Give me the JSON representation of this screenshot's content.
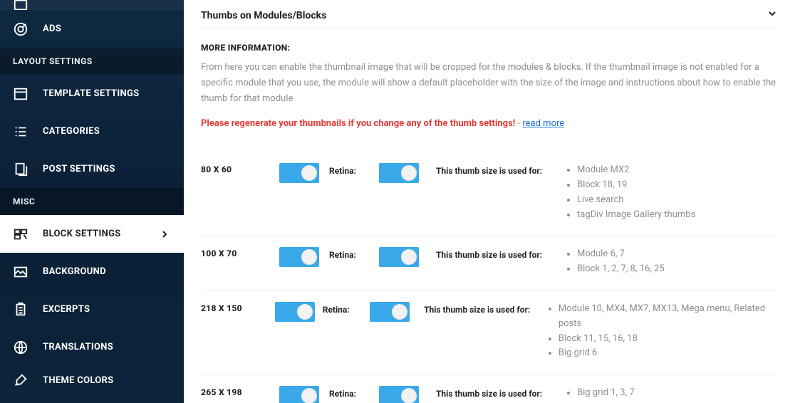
{
  "sidebar": {
    "items_top": [
      {
        "label": "ADS",
        "icon": "target"
      }
    ],
    "section1": "LAYOUT SETTINGS",
    "items_layout": [
      {
        "label": "TEMPLATE SETTINGS",
        "icon": "layout"
      },
      {
        "label": "CATEGORIES",
        "icon": "list"
      },
      {
        "label": "POST SETTINGS",
        "icon": "docs"
      }
    ],
    "section2": "MISC",
    "items_misc": [
      {
        "label": "BLOCK SETTINGS",
        "icon": "blocks",
        "active": true
      },
      {
        "label": "BACKGROUND",
        "icon": "image"
      },
      {
        "label": "EXCERPTS",
        "icon": "clipboard"
      },
      {
        "label": "TRANSLATIONS",
        "icon": "globe"
      },
      {
        "label": "THEME COLORS",
        "icon": "brush"
      }
    ]
  },
  "panel": {
    "title": "Thumbs on Modules/Blocks",
    "info_title": "MORE INFORMATION:",
    "info_text": "From here you can enable the thumbnail image that will be cropped for the modules & blocks. If the thumbnail image is not enabled for a specific module that you use, the module will show a default placeholder with the size of the image and instructions about how to enable the thumb for that module",
    "warning_text": "Please regenerate your thumbnails if you change any of the thumb settings!",
    "warning_sep": " - ",
    "warning_link": "read more",
    "retina_label": "Retina:",
    "used_label": "This thumb size is used for:",
    "rows": [
      {
        "size": "80 X 60",
        "uses": [
          "Module MX2",
          "Block 18, 19",
          "Live search",
          "tagDiv Image Gallery thumbs"
        ]
      },
      {
        "size": "100 X 70",
        "uses": [
          "Module 6, 7",
          "Block 1, 2, 7, 8, 16, 25"
        ]
      },
      {
        "size": "218 X 150",
        "uses": [
          "Module 10, MX4, MX7, MX13, Mega menu, Related posts",
          "Block 11, 15, 16, 18",
          "Big grid 6"
        ]
      },
      {
        "size": "265 X 198",
        "uses": [
          "Big grid 1, 3, 7"
        ]
      }
    ]
  },
  "colors": {
    "toggle": "#3aa9ea",
    "warning": "#e53935",
    "link": "#1d6fd6",
    "muted": "#8a8f94"
  }
}
